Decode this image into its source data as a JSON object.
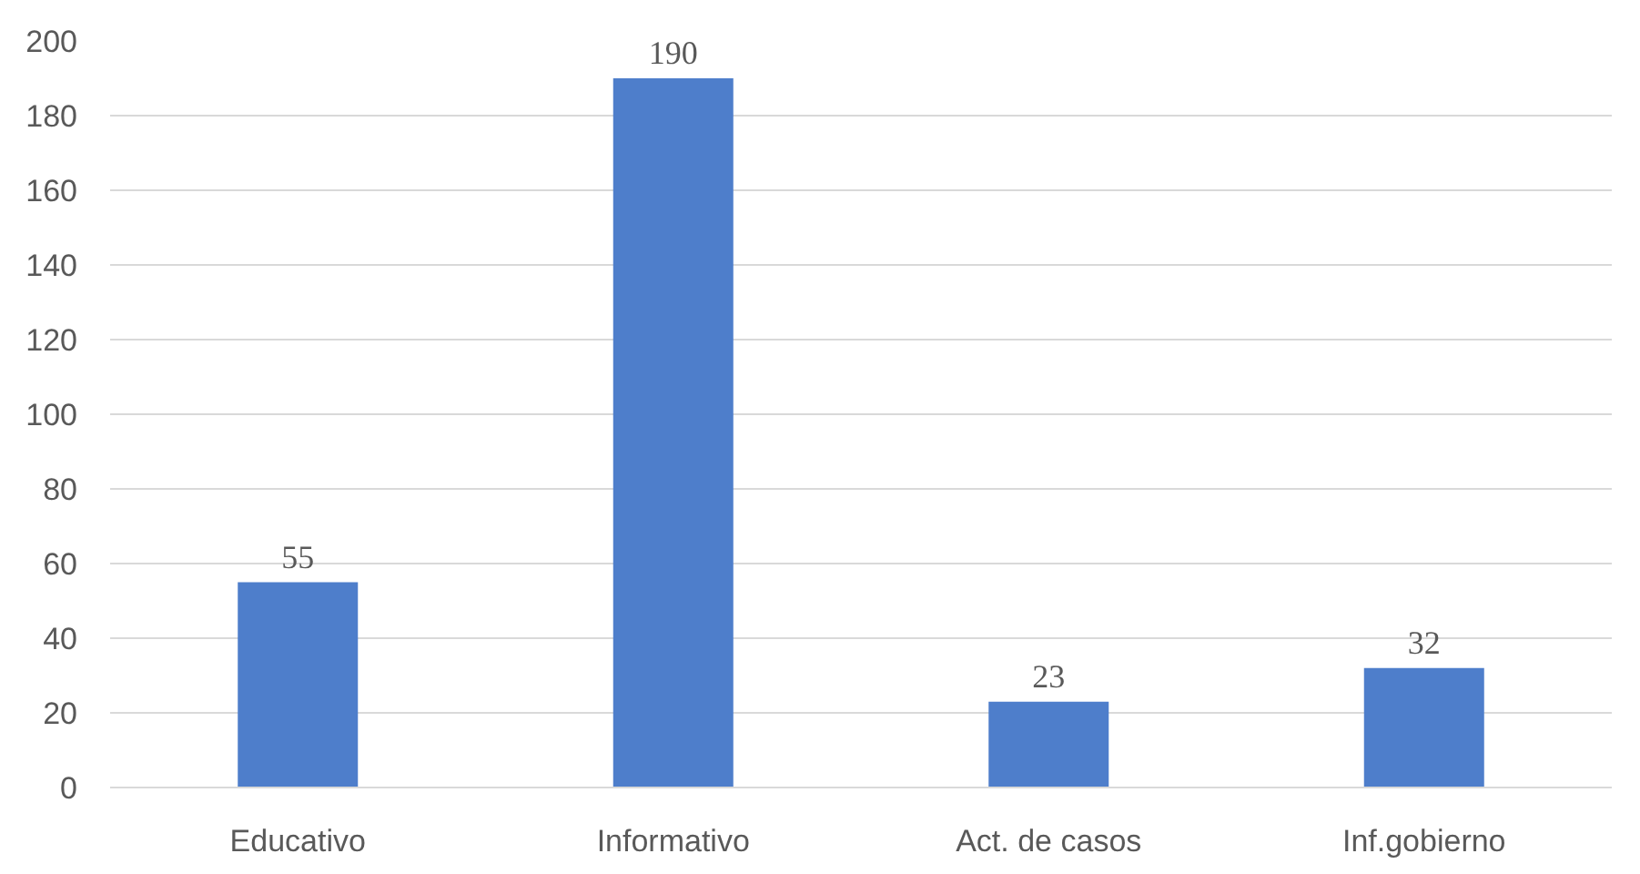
{
  "chart_data": {
    "type": "bar",
    "categories": [
      "Educativo",
      "Informativo",
      "Act. de casos",
      "Inf.gobierno"
    ],
    "values": [
      55,
      190,
      23,
      32
    ],
    "color": "#4e7ecb",
    "ylim": [
      0,
      200
    ],
    "yticks": [
      0,
      20,
      40,
      60,
      80,
      100,
      120,
      140,
      160,
      180,
      200
    ],
    "grid": "y",
    "data_labels": true
  }
}
